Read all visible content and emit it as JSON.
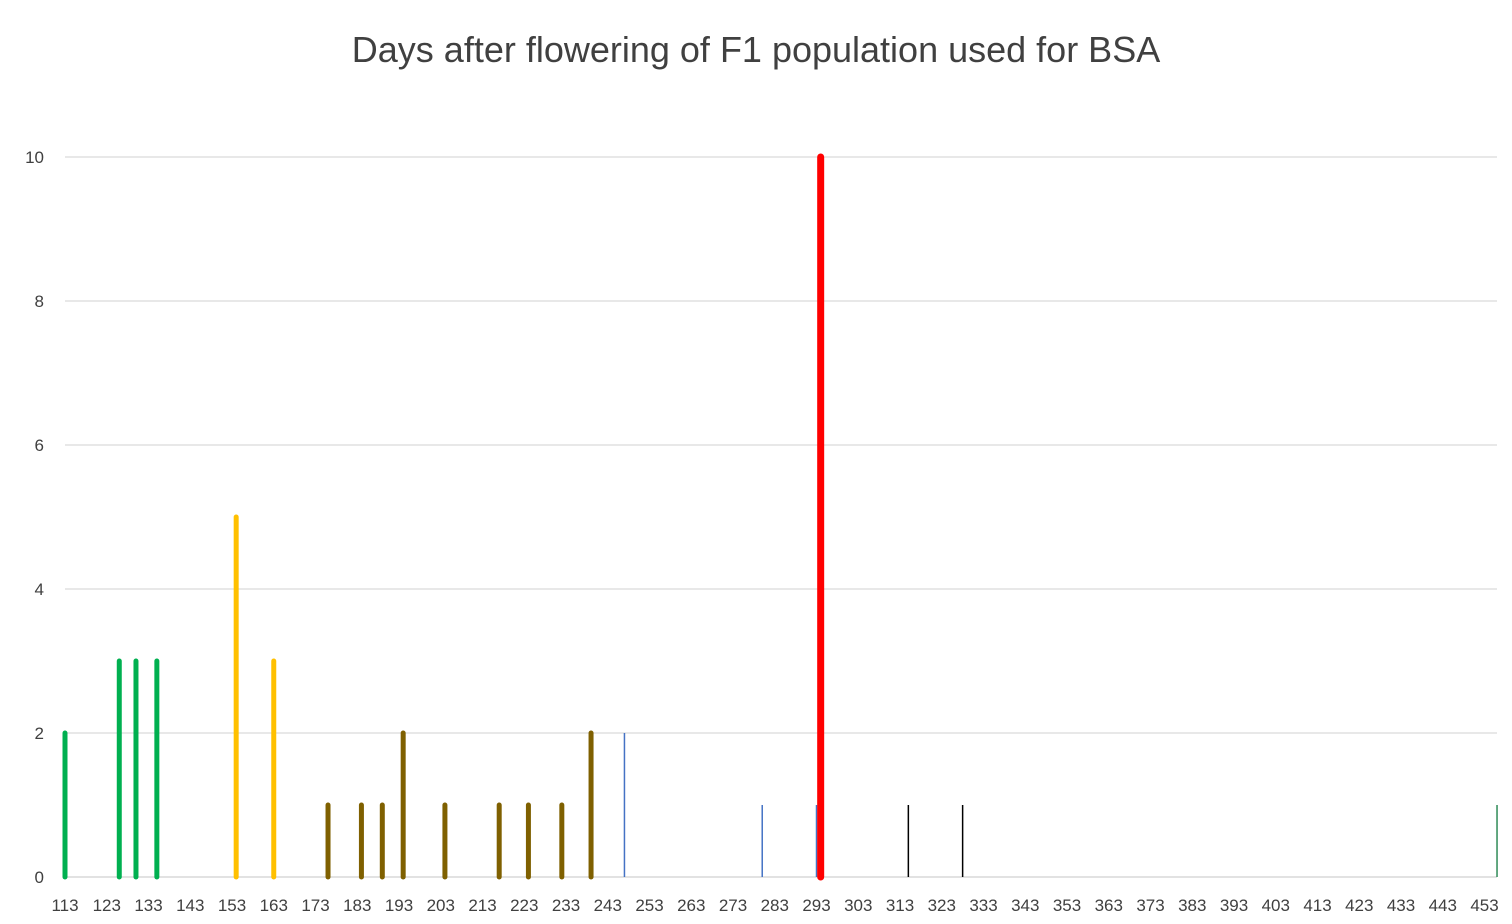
{
  "chart_data": {
    "type": "bar",
    "title": "Days after flowering of F1  population used for BSA",
    "xlabel": "",
    "ylabel": "",
    "xlim": [
      113,
      456
    ],
    "ylim": [
      0,
      10
    ],
    "y_ticks": [
      0,
      2,
      4,
      6,
      8,
      10
    ],
    "x_ticks": [
      113,
      123,
      133,
      143,
      153,
      163,
      173,
      183,
      193,
      203,
      213,
      223,
      233,
      243,
      253,
      263,
      273,
      283,
      293,
      303,
      313,
      323,
      333,
      343,
      353,
      363,
      373,
      383,
      393,
      403,
      413,
      423,
      433,
      443,
      453
    ],
    "grid": true,
    "legend": "none",
    "colors": {
      "green": "#00b050",
      "yellow": "#ffc000",
      "brown": "#7f6000",
      "blue": "#4472c4",
      "red": "#ff0000",
      "black": "#000000",
      "teal": "#2e8b57",
      "grid": "#d9d9d9",
      "text": "#404040"
    },
    "series": [
      {
        "color": "green",
        "weight": "bold",
        "points": [
          [
            113,
            2
          ],
          [
            126,
            3
          ],
          [
            130,
            3
          ],
          [
            135,
            3
          ]
        ]
      },
      {
        "color": "yellow",
        "weight": "bold",
        "points": [
          [
            154,
            5
          ],
          [
            163,
            3
          ]
        ]
      },
      {
        "color": "brown",
        "weight": "bold",
        "points": [
          [
            176,
            1
          ],
          [
            184,
            1
          ],
          [
            189,
            1
          ],
          [
            194,
            2
          ],
          [
            204,
            1
          ],
          [
            217,
            1
          ],
          [
            224,
            1
          ],
          [
            232,
            1
          ],
          [
            239,
            2
          ]
        ]
      },
      {
        "color": "blue",
        "weight": "thin",
        "points": [
          [
            247,
            2
          ],
          [
            280,
            1
          ],
          [
            293,
            1
          ]
        ]
      },
      {
        "color": "red",
        "weight": "heavy",
        "points": [
          [
            294,
            10
          ]
        ]
      },
      {
        "color": "black",
        "weight": "thin",
        "points": [
          [
            315,
            1
          ],
          [
            328,
            1
          ]
        ]
      },
      {
        "color": "teal",
        "weight": "thin",
        "points": [
          [
            456,
            1
          ]
        ]
      }
    ]
  }
}
